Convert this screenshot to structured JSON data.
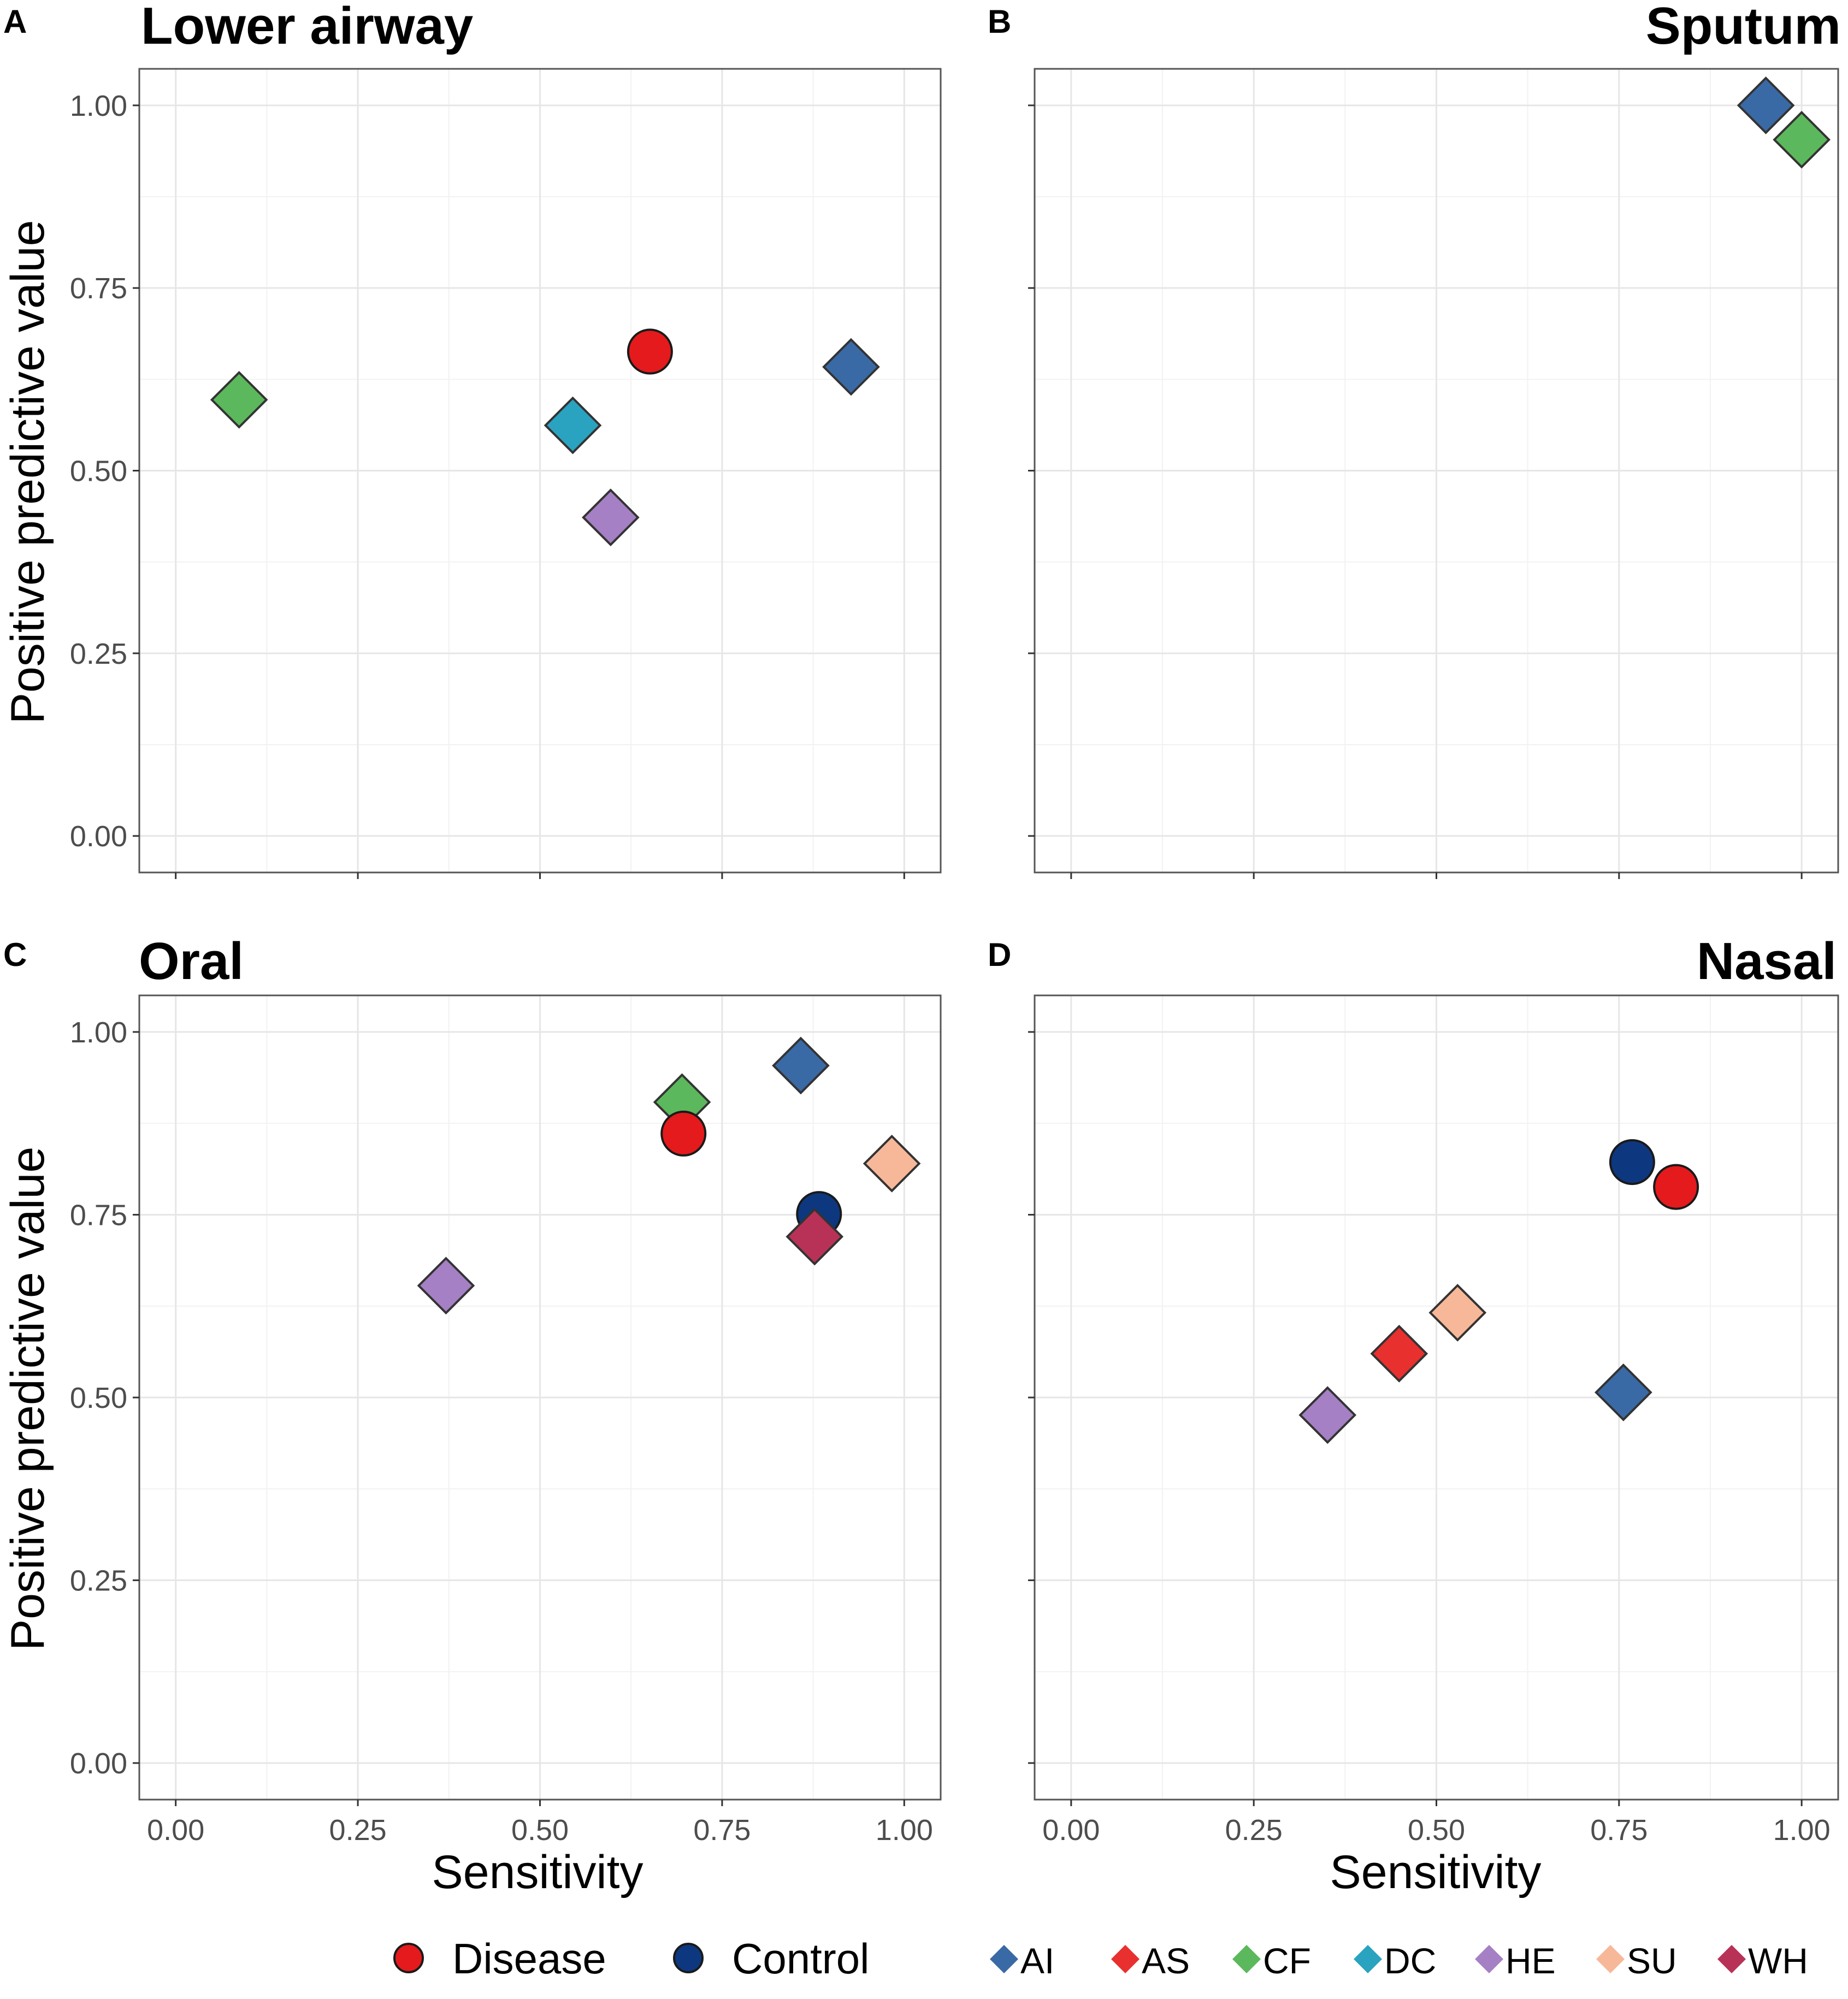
{
  "chart_data": [
    {
      "type": "scatter",
      "panel_label": "A",
      "title": "Lower airway",
      "title_align": "left",
      "xlabel": "",
      "ylabel": "Positive predictive value",
      "xlim": [
        -0.05,
        1.05
      ],
      "ylim": [
        -0.05,
        1.05
      ],
      "xticks": [
        0,
        0.25,
        0.5,
        0.75,
        1
      ],
      "xtick_labels": [],
      "yticks": [
        0,
        0.25,
        0.5,
        0.75,
        1
      ],
      "ytick_labels": [
        "0.00",
        "0.25",
        "0.50",
        "0.75",
        "1.00"
      ],
      "grid": true,
      "points": [
        {
          "group": "CF",
          "shape": "diamond",
          "color": "#5cb85c",
          "x": 0.087,
          "y": 0.597
        },
        {
          "group": "DC",
          "shape": "diamond",
          "color": "#2aa3c0",
          "x": 0.545,
          "y": 0.562
        },
        {
          "group": "HE",
          "shape": "diamond",
          "color": "#a580c4",
          "x": 0.597,
          "y": 0.436
        },
        {
          "group": "Disease",
          "shape": "circle",
          "color": "#e41a1c",
          "x": 0.651,
          "y": 0.663
        },
        {
          "group": "AI",
          "shape": "diamond",
          "color": "#3a6aa6",
          "x": 0.927,
          "y": 0.642
        }
      ]
    },
    {
      "type": "scatter",
      "panel_label": "B",
      "title": "Sputum",
      "title_align": "right",
      "xlabel": "",
      "ylabel": "",
      "xlim": [
        -0.05,
        1.05
      ],
      "ylim": [
        -0.05,
        1.05
      ],
      "xticks": [
        0,
        0.25,
        0.5,
        0.75,
        1
      ],
      "xtick_labels": [],
      "yticks": [
        0,
        0.25,
        0.5,
        0.75,
        1
      ],
      "ytick_labels": [],
      "grid": true,
      "points": [
        {
          "group": "AI",
          "shape": "diamond",
          "color": "#3a6aa6",
          "x": 0.951,
          "y": 1.0
        },
        {
          "group": "CF",
          "shape": "diamond",
          "color": "#5cb85c",
          "x": 1.0,
          "y": 0.953
        }
      ]
    },
    {
      "type": "scatter",
      "panel_label": "C",
      "title": "Oral",
      "title_align": "left",
      "xlabel": "Sensitivity",
      "ylabel": "Positive predictive value",
      "xlim": [
        -0.05,
        1.05
      ],
      "ylim": [
        -0.05,
        1.05
      ],
      "xticks": [
        0,
        0.25,
        0.5,
        0.75,
        1
      ],
      "xtick_labels": [
        "0.00",
        "0.25",
        "0.50",
        "0.75",
        "1.00"
      ],
      "yticks": [
        0,
        0.25,
        0.5,
        0.75,
        1
      ],
      "ytick_labels": [
        "0.00",
        "0.25",
        "0.50",
        "0.75",
        "1.00"
      ],
      "grid": true,
      "points": [
        {
          "group": "HE",
          "shape": "diamond",
          "color": "#a580c4",
          "x": 0.371,
          "y": 0.653
        },
        {
          "group": "CF",
          "shape": "diamond",
          "color": "#5cb85c",
          "x": 0.695,
          "y": 0.904
        },
        {
          "group": "Disease",
          "shape": "circle",
          "color": "#e41a1c",
          "x": 0.697,
          "y": 0.861
        },
        {
          "group": "AI",
          "shape": "diamond",
          "color": "#3a6aa6",
          "x": 0.858,
          "y": 0.954
        },
        {
          "group": "Control",
          "shape": "circle",
          "color": "#0d3880",
          "x": 0.883,
          "y": 0.751
        },
        {
          "group": "WH",
          "shape": "diamond",
          "color": "#b83258",
          "x": 0.877,
          "y": 0.72
        },
        {
          "group": "SU",
          "shape": "diamond",
          "color": "#f7b899",
          "x": 0.983,
          "y": 0.82
        }
      ]
    },
    {
      "type": "scatter",
      "panel_label": "D",
      "title": "Nasal",
      "title_align": "right",
      "xlabel": "Sensitivity",
      "ylabel": "",
      "xlim": [
        -0.05,
        1.05
      ],
      "ylim": [
        -0.05,
        1.05
      ],
      "xticks": [
        0,
        0.25,
        0.5,
        0.75,
        1
      ],
      "xtick_labels": [
        "0.00",
        "0.25",
        "0.50",
        "0.75",
        "1.00"
      ],
      "yticks": [
        0,
        0.25,
        0.5,
        0.75,
        1
      ],
      "ytick_labels": [],
      "grid": true,
      "points": [
        {
          "group": "HE",
          "shape": "diamond",
          "color": "#a580c4",
          "x": 0.351,
          "y": 0.476
        },
        {
          "group": "AS",
          "shape": "diamond",
          "color": "#e8302e",
          "x": 0.449,
          "y": 0.56
        },
        {
          "group": "SU",
          "shape": "diamond",
          "color": "#f7b899",
          "x": 0.529,
          "y": 0.616
        },
        {
          "group": "AI",
          "shape": "diamond",
          "color": "#3a6aa6",
          "x": 0.756,
          "y": 0.507
        },
        {
          "group": "Control",
          "shape": "circle",
          "color": "#0d3880",
          "x": 0.768,
          "y": 0.822
        },
        {
          "group": "Disease",
          "shape": "circle",
          "color": "#e41a1c",
          "x": 0.828,
          "y": 0.788
        }
      ]
    }
  ],
  "legend": {
    "position": "bottom",
    "outcome": [
      {
        "label": "Disease",
        "shape": "circle",
        "color": "#e41a1c"
      },
      {
        "label": "Control",
        "shape": "circle",
        "color": "#0d3880"
      }
    ],
    "groups": [
      {
        "label": "AI",
        "shape": "diamond",
        "color": "#3a6aa6"
      },
      {
        "label": "AS",
        "shape": "diamond",
        "color": "#e8302e"
      },
      {
        "label": "CF",
        "shape": "diamond",
        "color": "#5cb85c"
      },
      {
        "label": "DC",
        "shape": "diamond",
        "color": "#2aa3c0"
      },
      {
        "label": "HE",
        "shape": "diamond",
        "color": "#a580c4"
      },
      {
        "label": "SU",
        "shape": "diamond",
        "color": "#f7b899"
      },
      {
        "label": "WH",
        "shape": "diamond",
        "color": "#b83258"
      }
    ]
  }
}
